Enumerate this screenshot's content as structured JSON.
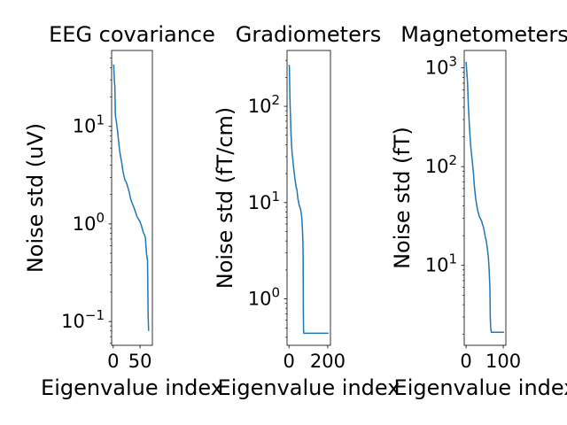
{
  "chart_data": [
    {
      "type": "line",
      "title": "EEG covariance",
      "xlabel": "Eigenvalue index",
      "ylabel": "Noise std (uV)",
      "yscale": "log",
      "xlim": [
        -3,
        73
      ],
      "ylim": [
        0.057,
        60
      ],
      "xticks": [
        {
          "value": 0,
          "label": "0"
        },
        {
          "value": 50,
          "label": "50"
        }
      ],
      "yticks": [
        {
          "value": 0.1,
          "base": "10",
          "exp": "−1"
        },
        {
          "value": 1,
          "base": "10",
          "exp": "0"
        },
        {
          "value": 10,
          "base": "10",
          "exp": "1"
        }
      ],
      "color": "#1f77b4",
      "points": [
        [
          0,
          43
        ],
        [
          1,
          42
        ],
        [
          2,
          30
        ],
        [
          3,
          26
        ],
        [
          4,
          13
        ],
        [
          6,
          11
        ],
        [
          8,
          9
        ],
        [
          10,
          7
        ],
        [
          12,
          5.6
        ],
        [
          14,
          4.8
        ],
        [
          16,
          4.2
        ],
        [
          18,
          3.5
        ],
        [
          20,
          3.1
        ],
        [
          22,
          2.8
        ],
        [
          24,
          2.7
        ],
        [
          26,
          2.5
        ],
        [
          28,
          2.3
        ],
        [
          30,
          2.1
        ],
        [
          32,
          1.85
        ],
        [
          34,
          1.7
        ],
        [
          36,
          1.6
        ],
        [
          38,
          1.5
        ],
        [
          40,
          1.4
        ],
        [
          42,
          1.3
        ],
        [
          44,
          1.2
        ],
        [
          46,
          1.15
        ],
        [
          48,
          1.1
        ],
        [
          50,
          1.05
        ],
        [
          52,
          0.98
        ],
        [
          54,
          0.9
        ],
        [
          56,
          0.82
        ],
        [
          58,
          0.78
        ],
        [
          60,
          0.72
        ],
        [
          62,
          0.5
        ],
        [
          64,
          0.42
        ],
        [
          65,
          0.12
        ],
        [
          66,
          0.08
        ]
      ]
    },
    {
      "type": "line",
      "title": "Gradiometers",
      "xlabel": "Eigenvalue index",
      "ylabel": "Noise std (fT/cm)",
      "yscale": "log",
      "xlim": [
        -10,
        214
      ],
      "ylim": [
        0.33,
        380
      ],
      "xticks": [
        {
          "value": 0,
          "label": "0"
        },
        {
          "value": 200,
          "label": "200"
        }
      ],
      "yticks": [
        {
          "value": 1,
          "base": "10",
          "exp": "0"
        },
        {
          "value": 10,
          "base": "10",
          "exp": "1"
        },
        {
          "value": 100,
          "base": "10",
          "exp": "2"
        }
      ],
      "color": "#1f77b4",
      "points": [
        [
          0,
          270
        ],
        [
          2,
          260
        ],
        [
          4,
          150
        ],
        [
          6,
          100
        ],
        [
          8,
          75
        ],
        [
          10,
          55
        ],
        [
          12,
          45
        ],
        [
          14,
          38
        ],
        [
          16,
          33
        ],
        [
          18,
          30
        ],
        [
          20,
          28
        ],
        [
          22,
          25
        ],
        [
          24,
          23
        ],
        [
          26,
          21
        ],
        [
          28,
          20
        ],
        [
          30,
          18
        ],
        [
          32,
          17
        ],
        [
          34,
          16
        ],
        [
          36,
          15
        ],
        [
          38,
          14
        ],
        [
          40,
          14
        ],
        [
          42,
          13
        ],
        [
          44,
          12
        ],
        [
          46,
          11
        ],
        [
          48,
          10.5
        ],
        [
          50,
          10
        ],
        [
          52,
          9.5
        ],
        [
          56,
          9
        ],
        [
          60,
          8.5
        ],
        [
          62,
          8
        ],
        [
          64,
          7.5
        ],
        [
          66,
          7
        ],
        [
          68,
          6
        ],
        [
          70,
          5
        ],
        [
          72,
          3.8
        ],
        [
          73,
          2.5
        ],
        [
          74,
          0.8
        ],
        [
          75,
          0.5
        ],
        [
          76,
          0.44
        ],
        [
          204,
          0.44
        ]
      ]
    },
    {
      "type": "line",
      "title": "Magnetometers",
      "xlabel": "Eigenvalue index",
      "ylabel": "Noise std (fT)",
      "yscale": "log",
      "xlim": [
        -5,
        107
      ],
      "ylim": [
        1.55,
        1500
      ],
      "xticks": [
        {
          "value": 0,
          "label": "0"
        },
        {
          "value": 100,
          "label": "100"
        }
      ],
      "yticks": [
        {
          "value": 10,
          "base": "10",
          "exp": "1"
        },
        {
          "value": 100,
          "base": "10",
          "exp": "2"
        },
        {
          "value": 1000,
          "base": "10",
          "exp": "3"
        }
      ],
      "color": "#1f77b4",
      "points": [
        [
          0,
          1150
        ],
        [
          2,
          900
        ],
        [
          4,
          700
        ],
        [
          6,
          420
        ],
        [
          8,
          300
        ],
        [
          10,
          220
        ],
        [
          12,
          170
        ],
        [
          14,
          140
        ],
        [
          16,
          120
        ],
        [
          18,
          100
        ],
        [
          20,
          85
        ],
        [
          22,
          65
        ],
        [
          24,
          55
        ],
        [
          26,
          47
        ],
        [
          28,
          42
        ],
        [
          30,
          38
        ],
        [
          32,
          35
        ],
        [
          34,
          33
        ],
        [
          36,
          31
        ],
        [
          38,
          30
        ],
        [
          40,
          29
        ],
        [
          42,
          28
        ],
        [
          44,
          26
        ],
        [
          46,
          25
        ],
        [
          48,
          23
        ],
        [
          50,
          21
        ],
        [
          52,
          19
        ],
        [
          54,
          18
        ],
        [
          56,
          16
        ],
        [
          58,
          14
        ],
        [
          60,
          12
        ],
        [
          62,
          9
        ],
        [
          64,
          6
        ],
        [
          65,
          3
        ],
        [
          66,
          2.4
        ],
        [
          67,
          2.2
        ],
        [
          68,
          2.1
        ],
        [
          70,
          2.1
        ],
        [
          102,
          2.1
        ]
      ]
    }
  ]
}
